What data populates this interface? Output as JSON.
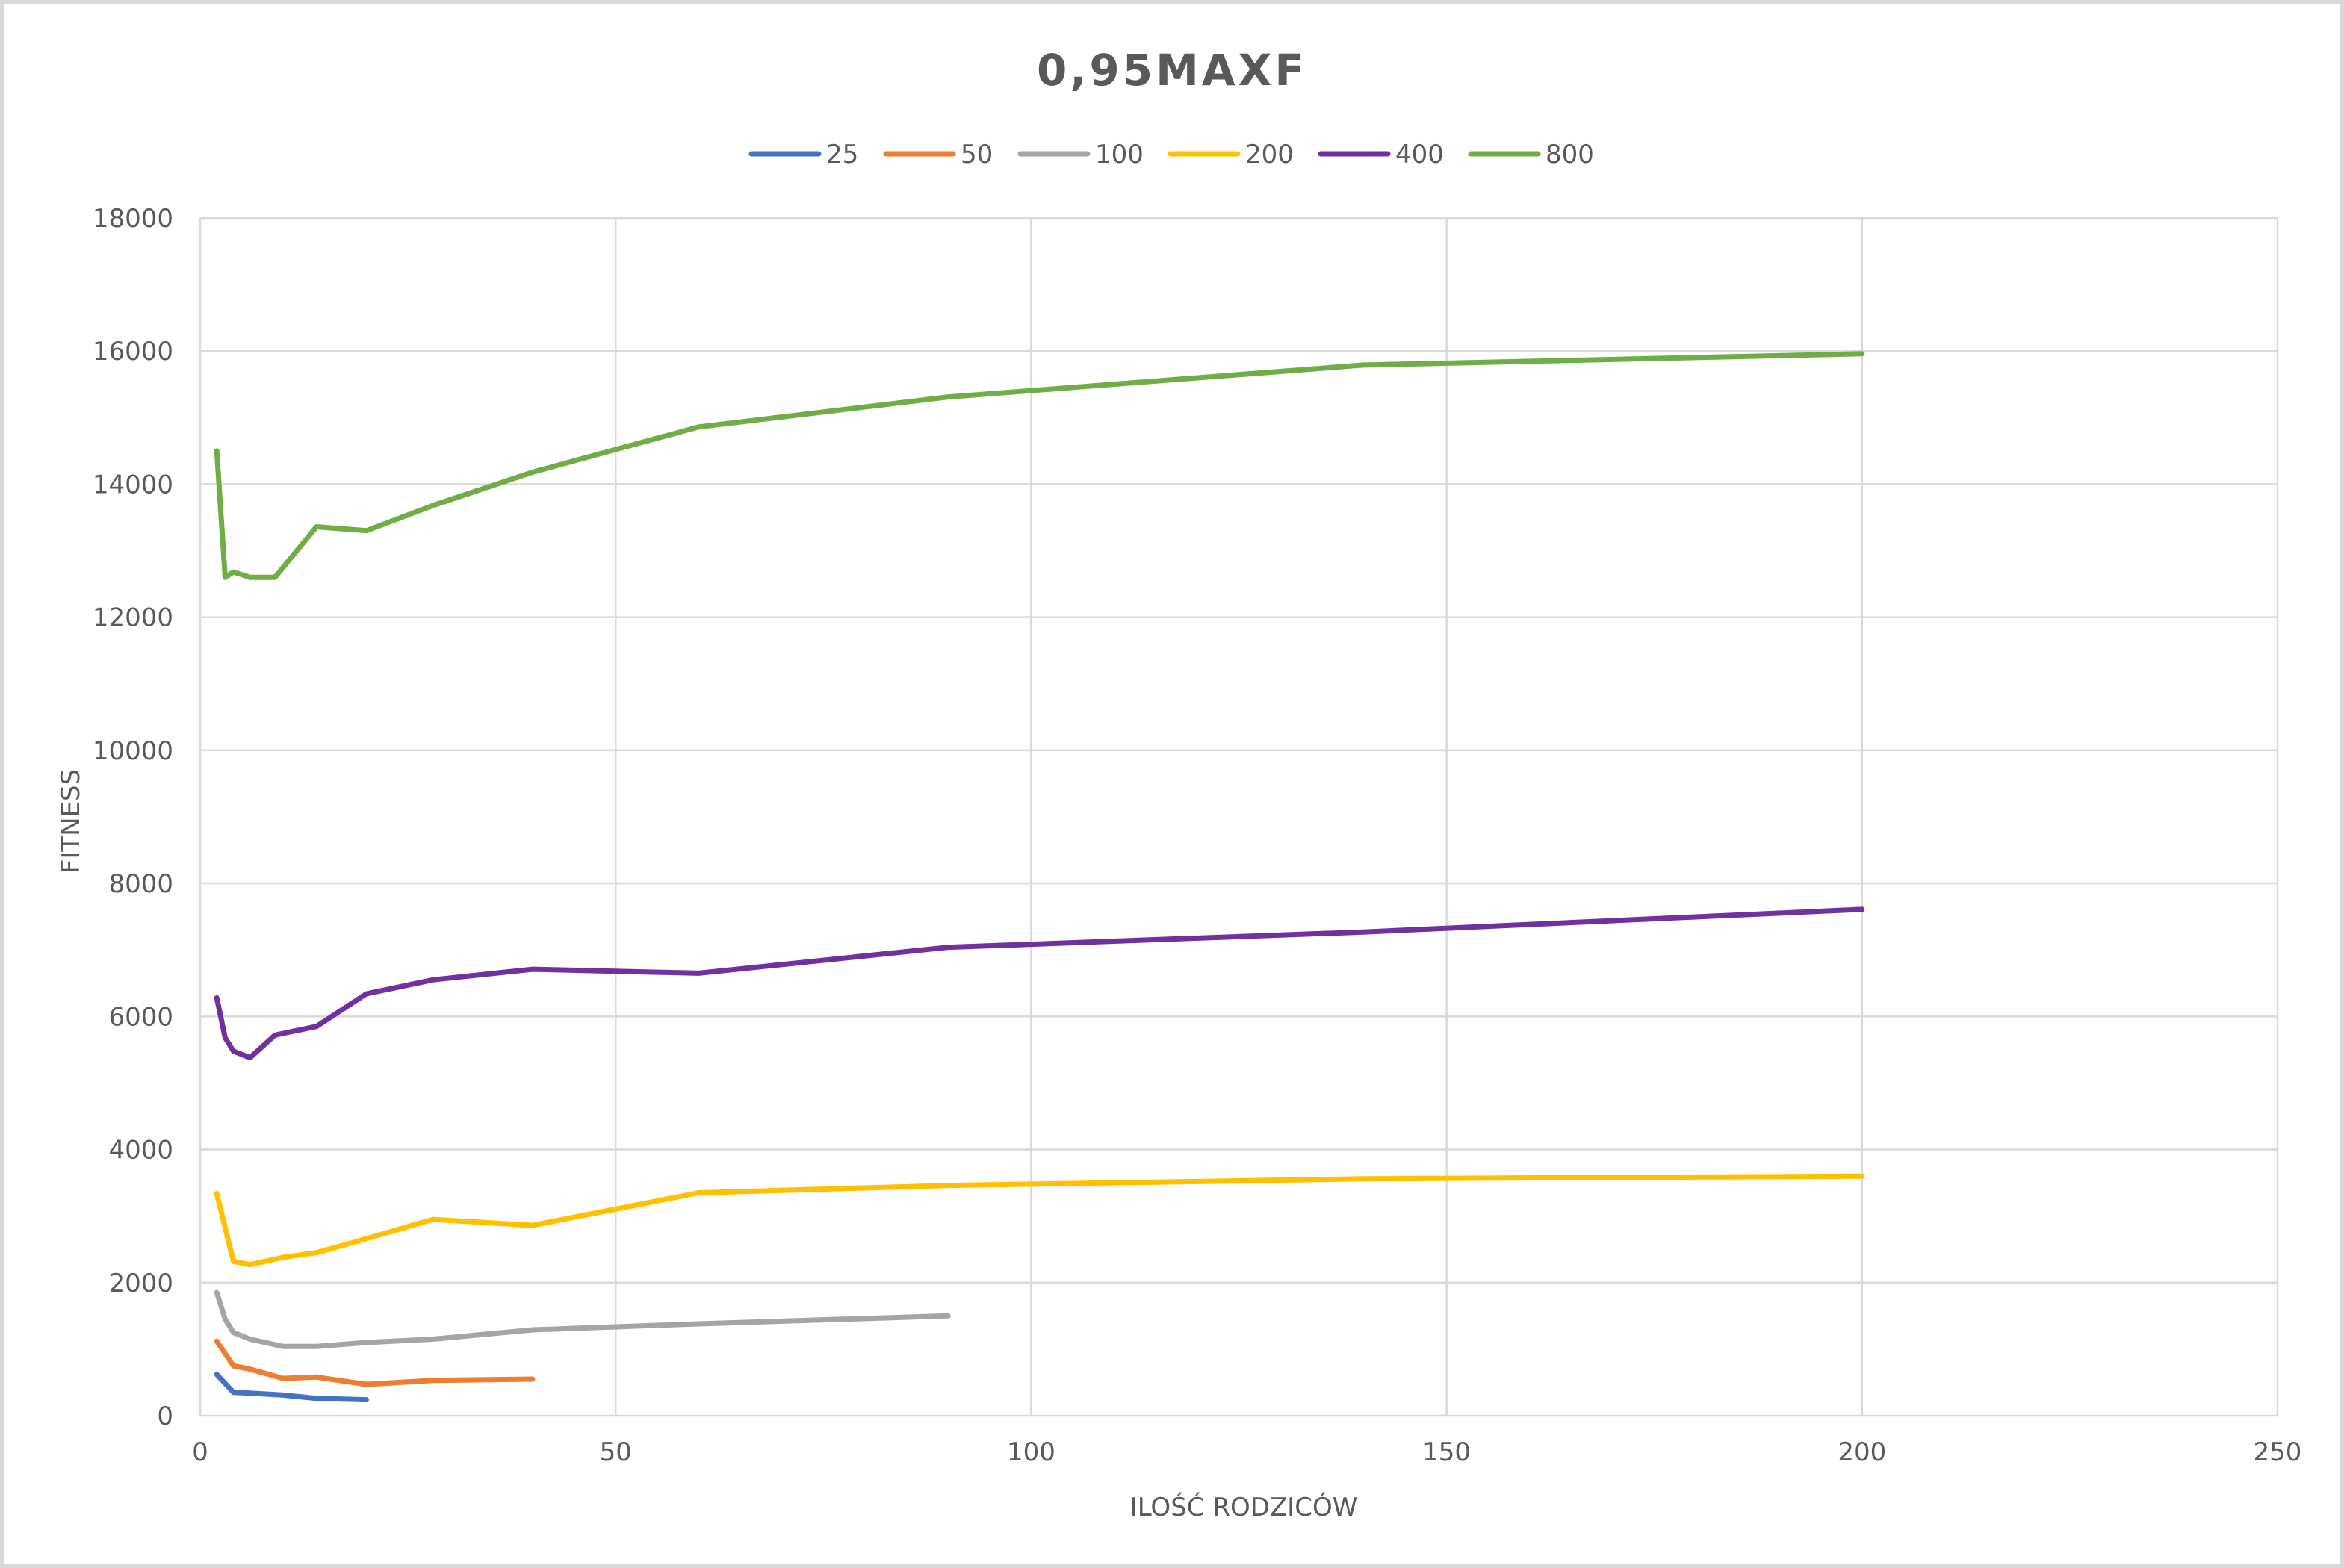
{
  "chart_data": {
    "type": "line",
    "title": "0,95MAXF",
    "xlabel": "ILOŚĆ RODZICÓW",
    "ylabel": "FITNESS",
    "xlim": [
      0,
      250
    ],
    "ylim": [
      0,
      18000
    ],
    "x_ticks": [
      "0",
      "50",
      "100",
      "150",
      "200",
      "250"
    ],
    "y_ticks": [
      "0",
      "2000",
      "4000",
      "6000",
      "8000",
      "10000",
      "12000",
      "14000",
      "16000",
      "18000"
    ],
    "grid": true,
    "legend_position": "top",
    "series": [
      {
        "name": "25",
        "color": "#4472c4",
        "points": [
          [
            2,
            620
          ],
          [
            4,
            350
          ],
          [
            6,
            340
          ],
          [
            10,
            310
          ],
          [
            14,
            260
          ],
          [
            20,
            240
          ]
        ]
      },
      {
        "name": "50",
        "color": "#ed7d31",
        "points": [
          [
            2,
            1120
          ],
          [
            4,
            750
          ],
          [
            6,
            700
          ],
          [
            10,
            560
          ],
          [
            14,
            580
          ],
          [
            20,
            470
          ],
          [
            28,
            530
          ],
          [
            40,
            550
          ]
        ]
      },
      {
        "name": "100",
        "color": "#a5a5a5",
        "points": [
          [
            2,
            1850
          ],
          [
            3,
            1450
          ],
          [
            4,
            1250
          ],
          [
            6,
            1150
          ],
          [
            10,
            1040
          ],
          [
            14,
            1040
          ],
          [
            20,
            1100
          ],
          [
            28,
            1150
          ],
          [
            40,
            1290
          ],
          [
            60,
            1380
          ],
          [
            90,
            1500
          ]
        ]
      },
      {
        "name": "200",
        "color": "#ffc000",
        "points": [
          [
            2,
            3340
          ],
          [
            4,
            2320
          ],
          [
            6,
            2270
          ],
          [
            10,
            2380
          ],
          [
            14,
            2450
          ],
          [
            20,
            2660
          ],
          [
            28,
            2950
          ],
          [
            40,
            2860
          ],
          [
            60,
            3350
          ],
          [
            90,
            3460
          ],
          [
            140,
            3560
          ],
          [
            200,
            3600
          ]
        ]
      },
      {
        "name": "400",
        "color": "#7030a0",
        "points": [
          [
            2,
            6280
          ],
          [
            3,
            5680
          ],
          [
            4,
            5480
          ],
          [
            6,
            5380
          ],
          [
            9,
            5720
          ],
          [
            14,
            5850
          ],
          [
            20,
            6340
          ],
          [
            28,
            6550
          ],
          [
            40,
            6710
          ],
          [
            60,
            6650
          ],
          [
            90,
            7040
          ],
          [
            140,
            7270
          ],
          [
            200,
            7610
          ]
        ]
      },
      {
        "name": "800",
        "color": "#70ad47",
        "points": [
          [
            2,
            14500
          ],
          [
            3,
            12600
          ],
          [
            4,
            12680
          ],
          [
            6,
            12600
          ],
          [
            9,
            12600
          ],
          [
            14,
            13360
          ],
          [
            20,
            13300
          ],
          [
            28,
            13680
          ],
          [
            40,
            14180
          ],
          [
            60,
            14860
          ],
          [
            90,
            15310
          ],
          [
            140,
            15790
          ],
          [
            200,
            15960
          ]
        ]
      }
    ]
  }
}
